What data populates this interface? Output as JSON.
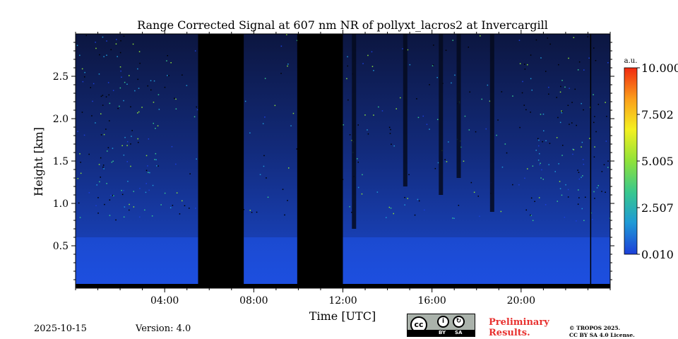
{
  "chart_data": {
    "type": "heatmap",
    "title": "Range Corrected Signal at 607 nm NR of pollyxt_lacros2 at Invercargill",
    "xlabel": "Time [UTC]",
    "ylabel": "Height [km]",
    "xlim_hours": [
      0,
      24
    ],
    "ylim_km": [
      0,
      3.0
    ],
    "x_ticks": [
      {
        "value": 4,
        "label": "04:00"
      },
      {
        "value": 8,
        "label": "08:00"
      },
      {
        "value": 12,
        "label": "12:00"
      },
      {
        "value": 16,
        "label": "16:00"
      },
      {
        "value": 20,
        "label": "20:00"
      }
    ],
    "y_ticks": [
      {
        "value": 0.5,
        "label": "0.5"
      },
      {
        "value": 1.0,
        "label": "1.0"
      },
      {
        "value": 1.5,
        "label": "1.5"
      },
      {
        "value": 2.0,
        "label": "2.0"
      },
      {
        "value": 2.5,
        "label": "2.5"
      }
    ],
    "colorbar": {
      "unit": "a.u.",
      "range": [
        0.01,
        10.0
      ],
      "ticks": [
        "0.010",
        "2.507",
        "5.005",
        "7.502",
        "10.000"
      ],
      "colors": [
        "#1c3fd8",
        "#1f9ad6",
        "#37c78f",
        "#8fe23a",
        "#f4f021",
        "#fba01b",
        "#f12a10"
      ]
    },
    "no_data_intervals_hours": [
      [
        5.5,
        7.55
      ],
      [
        9.95,
        12.0
      ]
    ],
    "cloud_base_events": [
      {
        "time": 12.5,
        "base_km": 0.7
      },
      {
        "time": 14.8,
        "base_km": 1.2
      },
      {
        "time": 16.4,
        "base_km": 1.1
      },
      {
        "time": 17.2,
        "base_km": 1.3
      },
      {
        "time": 18.7,
        "base_km": 0.9
      }
    ]
  },
  "footer": {
    "date": "2025-10-15",
    "version": "Version: 4.0",
    "license_badge": {
      "cc": "cc",
      "by": "BY",
      "sa": "SA"
    },
    "preliminary_line1": "Preliminary",
    "preliminary_line2": "Results.",
    "copyright_line1": "© TROPOS 2025.",
    "copyright_line2": "CC BY SA 4.0 License."
  }
}
